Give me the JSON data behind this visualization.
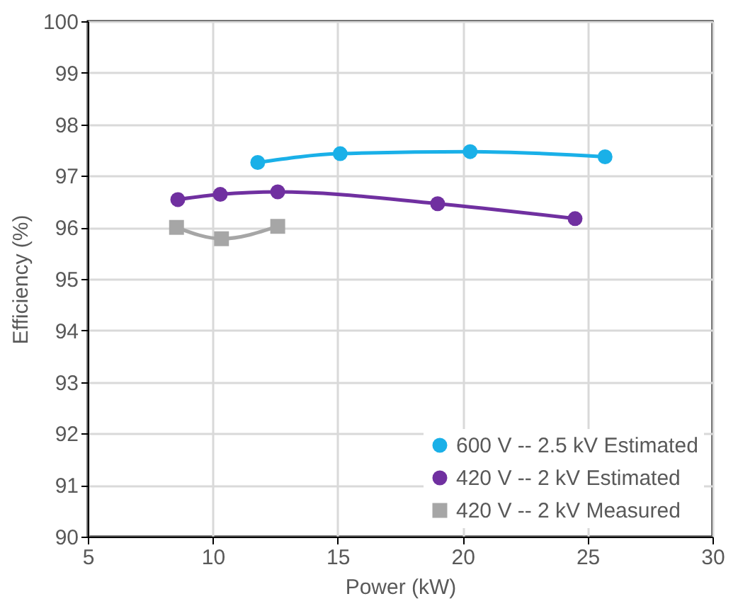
{
  "chart_data": {
    "type": "line",
    "xlabel": "Power (kW)",
    "ylabel": "Efficiency (%)",
    "xlim": [
      5,
      30
    ],
    "xticks": [
      5,
      10,
      15,
      20,
      25,
      30
    ],
    "ylim": [
      90,
      100
    ],
    "yticks": [
      90,
      91,
      92,
      93,
      94,
      95,
      96,
      97,
      98,
      99,
      100
    ],
    "grid": true,
    "legend": "bottom right",
    "series": [
      {
        "name": "600 V -- 2.5 kV Estimated",
        "color": "#1ab0e8",
        "marker": "circle",
        "x": [
          11.8,
          15.1,
          20.3,
          25.7
        ],
        "values": [
          97.26,
          97.43,
          97.47,
          97.37
        ]
      },
      {
        "name": "420 V -- 2 kV Estimated",
        "color": "#7030a0",
        "marker": "circle",
        "x": [
          8.6,
          10.3,
          12.6,
          19.0,
          24.5
        ],
        "values": [
          96.54,
          96.64,
          96.69,
          96.46,
          96.17
        ]
      },
      {
        "name": "420 V -- 2 kV Measured",
        "color": "#a6a6a6",
        "marker": "square",
        "x": [
          8.55,
          10.35,
          12.6
        ],
        "values": [
          96.0,
          95.78,
          96.02
        ]
      }
    ]
  }
}
